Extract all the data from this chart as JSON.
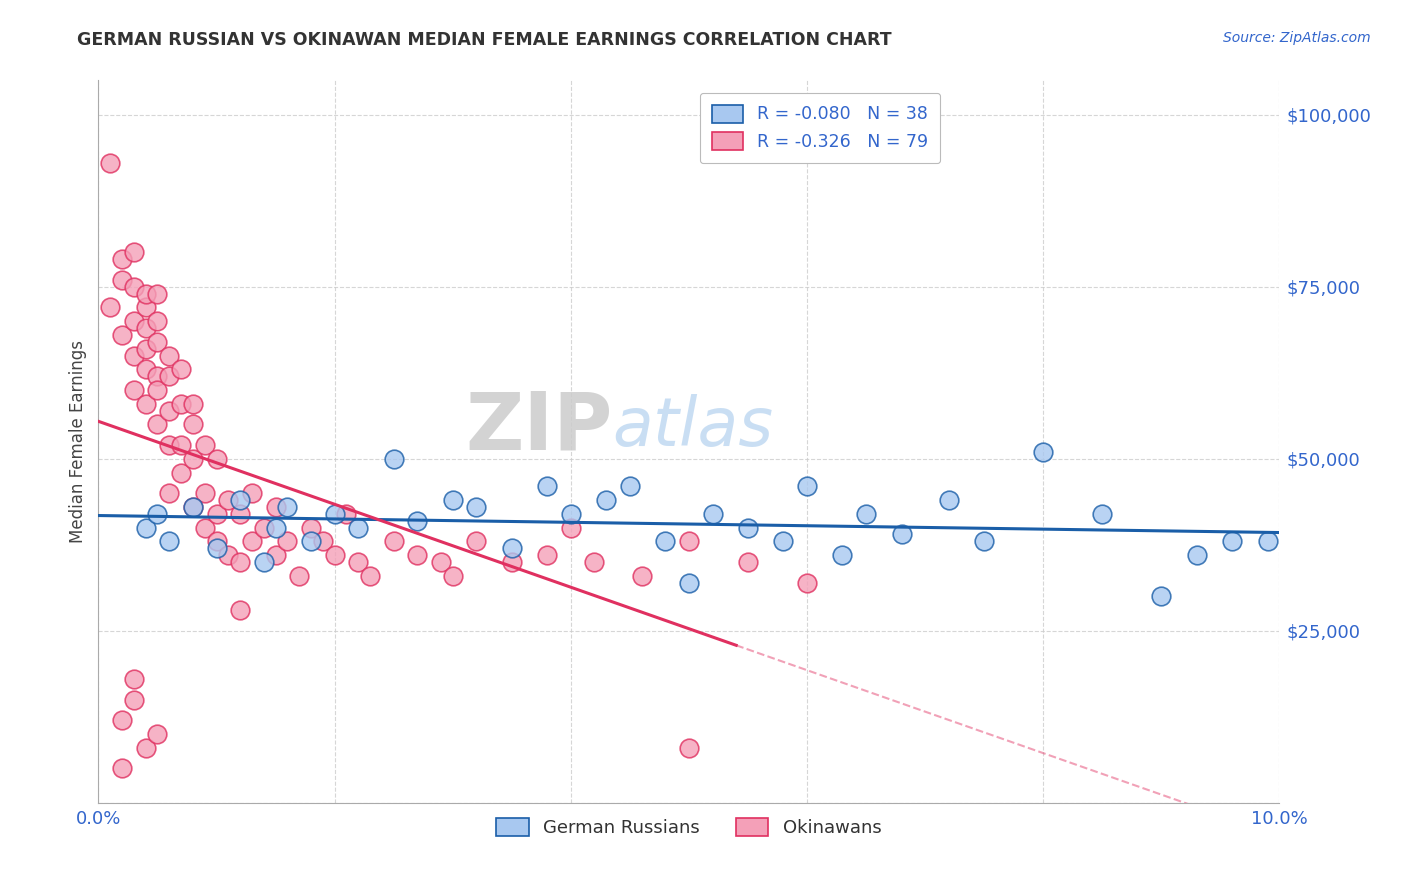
{
  "title": "GERMAN RUSSIAN VS OKINAWAN MEDIAN FEMALE EARNINGS CORRELATION CHART",
  "source": "Source: ZipAtlas.com",
  "ylabel": "Median Female Earnings",
  "xlim": [
    0.0,
    0.1
  ],
  "ylim": [
    0,
    105000
  ],
  "yticks": [
    0,
    25000,
    50000,
    75000,
    100000
  ],
  "ytick_labels": [
    "",
    "$25,000",
    "$50,000",
    "$75,000",
    "$100,000"
  ],
  "xticks": [
    0.0,
    0.02,
    0.04,
    0.06,
    0.08,
    0.1
  ],
  "xtick_labels": [
    "0.0%",
    "",
    "",
    "",
    "",
    "10.0%"
  ],
  "legend_label1": "German Russians",
  "legend_label2": "Okinawans",
  "r1": -0.08,
  "n1": 38,
  "r2": -0.326,
  "n2": 79,
  "color_blue": "#A8C8F0",
  "color_pink": "#F4A0B8",
  "color_line_blue": "#1A5EA8",
  "color_line_pink": "#E03060",
  "color_axis_labels": "#3366CC",
  "color_title": "#333333",
  "watermark_ZIP": "ZIP",
  "watermark_atlas": "atlas",
  "background_color": "#FFFFFF",
  "grid_color": "#CCCCCC",
  "german_russian_x": [
    0.004,
    0.005,
    0.006,
    0.008,
    0.01,
    0.012,
    0.014,
    0.015,
    0.016,
    0.018,
    0.02,
    0.022,
    0.025,
    0.027,
    0.03,
    0.032,
    0.035,
    0.038,
    0.04,
    0.043,
    0.045,
    0.048,
    0.05,
    0.052,
    0.055,
    0.058,
    0.06,
    0.063,
    0.065,
    0.068,
    0.072,
    0.075,
    0.08,
    0.085,
    0.09,
    0.093,
    0.096,
    0.099
  ],
  "german_russian_y": [
    40000,
    42000,
    38000,
    43000,
    37000,
    44000,
    35000,
    40000,
    43000,
    38000,
    42000,
    40000,
    50000,
    41000,
    44000,
    43000,
    37000,
    46000,
    42000,
    44000,
    46000,
    38000,
    32000,
    42000,
    40000,
    38000,
    46000,
    36000,
    42000,
    39000,
    44000,
    38000,
    51000,
    42000,
    30000,
    36000,
    38000,
    38000
  ],
  "okinawan_x": [
    0.001,
    0.001,
    0.002,
    0.002,
    0.002,
    0.003,
    0.003,
    0.003,
    0.003,
    0.003,
    0.004,
    0.004,
    0.004,
    0.004,
    0.004,
    0.004,
    0.005,
    0.005,
    0.005,
    0.005,
    0.005,
    0.005,
    0.006,
    0.006,
    0.006,
    0.006,
    0.006,
    0.007,
    0.007,
    0.007,
    0.007,
    0.008,
    0.008,
    0.008,
    0.008,
    0.009,
    0.009,
    0.009,
    0.01,
    0.01,
    0.01,
    0.011,
    0.011,
    0.012,
    0.012,
    0.013,
    0.013,
    0.014,
    0.015,
    0.015,
    0.016,
    0.017,
    0.018,
    0.019,
    0.02,
    0.021,
    0.022,
    0.023,
    0.025,
    0.027,
    0.029,
    0.03,
    0.032,
    0.035,
    0.038,
    0.04,
    0.042,
    0.046,
    0.05,
    0.055,
    0.06,
    0.002,
    0.004,
    0.005,
    0.003,
    0.002,
    0.012,
    0.05,
    0.003
  ],
  "okinawan_y": [
    93000,
    72000,
    76000,
    79000,
    68000,
    75000,
    70000,
    65000,
    80000,
    60000,
    69000,
    63000,
    72000,
    58000,
    66000,
    74000,
    70000,
    55000,
    62000,
    67000,
    60000,
    74000,
    65000,
    57000,
    52000,
    45000,
    62000,
    58000,
    48000,
    63000,
    52000,
    55000,
    43000,
    50000,
    58000,
    45000,
    40000,
    52000,
    42000,
    50000,
    38000,
    44000,
    36000,
    42000,
    35000,
    38000,
    45000,
    40000,
    36000,
    43000,
    38000,
    33000,
    40000,
    38000,
    36000,
    42000,
    35000,
    33000,
    38000,
    36000,
    35000,
    33000,
    38000,
    35000,
    36000,
    40000,
    35000,
    33000,
    38000,
    35000,
    32000,
    12000,
    8000,
    10000,
    15000,
    5000,
    28000,
    8000,
    18000
  ]
}
